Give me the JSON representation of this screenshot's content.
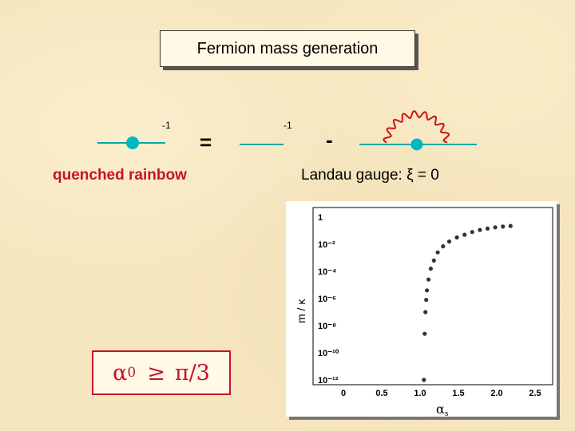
{
  "title": "Fermion mass generation",
  "equation": {
    "lhs_exponent": "-1",
    "equals": "=",
    "rhs_exponent": "-1",
    "minus": "-"
  },
  "left_label": "quenched rainbow",
  "right_label": "Landau gauge:  ξ = 0",
  "condition": {
    "alpha": "α",
    "subscript": "0",
    "relation": "≥",
    "value": "π/3"
  },
  "colors": {
    "accent_red": "#c8102e",
    "fermion_line": "#00a8a8",
    "vertex_dot": "#00b8c0"
  },
  "chart_data": {
    "type": "scatter",
    "xlabel": "α",
    "xlabel_sub": "s",
    "ylabel": "m / κ",
    "x_ticks": [
      "0",
      "0.5",
      "1.0",
      "1.5",
      "2.0",
      "2.5"
    ],
    "y_ticks": [
      "1",
      "10⁻²",
      "10⁻⁴",
      "10⁻⁶",
      "10⁻⁸",
      "10⁻¹⁰",
      "10⁻¹²"
    ],
    "xlim": [
      0,
      2.5
    ],
    "ylim_log10": [
      -12,
      0
    ],
    "points": [
      {
        "x": 1.05,
        "log10y": -12.0
      },
      {
        "x": 1.06,
        "log10y": -8.6
      },
      {
        "x": 1.07,
        "log10y": -7.0
      },
      {
        "x": 1.08,
        "log10y": -6.1
      },
      {
        "x": 1.09,
        "log10y": -5.4
      },
      {
        "x": 1.11,
        "log10y": -4.6
      },
      {
        "x": 1.14,
        "log10y": -3.8
      },
      {
        "x": 1.18,
        "log10y": -3.2
      },
      {
        "x": 1.23,
        "log10y": -2.6
      },
      {
        "x": 1.3,
        "log10y": -2.15
      },
      {
        "x": 1.38,
        "log10y": -1.8
      },
      {
        "x": 1.48,
        "log10y": -1.5
      },
      {
        "x": 1.58,
        "log10y": -1.3
      },
      {
        "x": 1.68,
        "log10y": -1.1
      },
      {
        "x": 1.78,
        "log10y": -0.95
      },
      {
        "x": 1.88,
        "log10y": -0.85
      },
      {
        "x": 1.98,
        "log10y": -0.75
      },
      {
        "x": 2.08,
        "log10y": -0.7
      },
      {
        "x": 2.18,
        "log10y": -0.65
      }
    ]
  }
}
